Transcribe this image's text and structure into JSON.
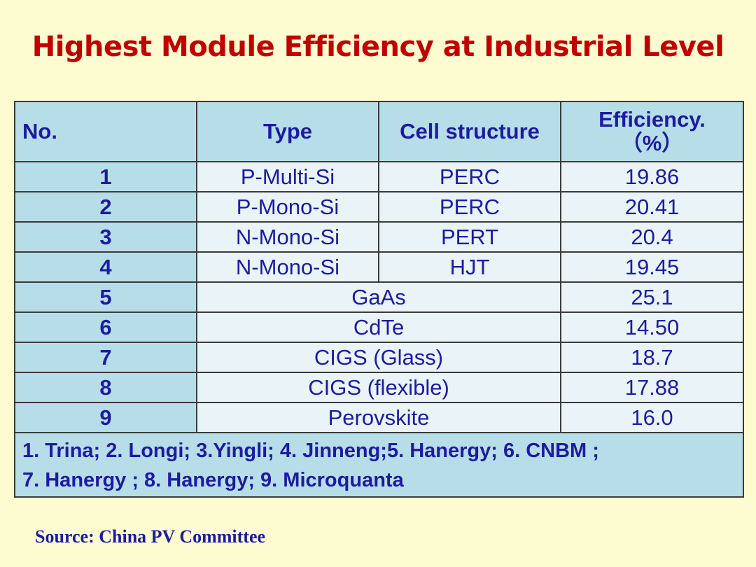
{
  "slide": {
    "title": "Highest Module Efficiency at Industrial Level",
    "source": "Source: China PV Committee"
  },
  "table": {
    "headers": {
      "no": "No.",
      "type": "Type",
      "structure": "Cell structure",
      "efficiency_line1": "Efficiency.",
      "efficiency_line2": "（%）"
    },
    "split_rows": [
      {
        "no": "1",
        "type": "P-Multi-Si",
        "structure": "PERC",
        "efficiency": "19.86"
      },
      {
        "no": "2",
        "type": "P-Mono-Si",
        "structure": "PERC",
        "efficiency": "20.41"
      },
      {
        "no": "3",
        "type": "N-Mono-Si",
        "structure": "PERT",
        "efficiency": "20.4"
      },
      {
        "no": "4",
        "type": "N-Mono-Si",
        "structure": "HJT",
        "efficiency": "19.45"
      }
    ],
    "merged_rows": [
      {
        "no": "5",
        "type": "GaAs",
        "efficiency": "25.1"
      },
      {
        "no": "6",
        "type": "CdTe",
        "efficiency": "14.50"
      },
      {
        "no": "7",
        "type": "CIGS (Glass)",
        "efficiency": "18.7"
      },
      {
        "no": "8",
        "type": "CIGS (flexible)",
        "efficiency": "17.88"
      },
      {
        "no": "9",
        "type": "Perovskite",
        "efficiency": "16.0"
      }
    ],
    "footer_line1": "1. Trina; 2. Longi; 3.Yingli; 4. Jinneng;5. Hanergy; 6. CNBM ;",
    "footer_line2": "7. Hanergy ; 8. Hanergy; 9. Microquanta"
  },
  "colors": {
    "background": "#fdfcd0",
    "title": "#c00000",
    "table_text": "#1c1ca0",
    "header_fill": "#b7dee8",
    "cell_fill": "#eaf3f7"
  }
}
